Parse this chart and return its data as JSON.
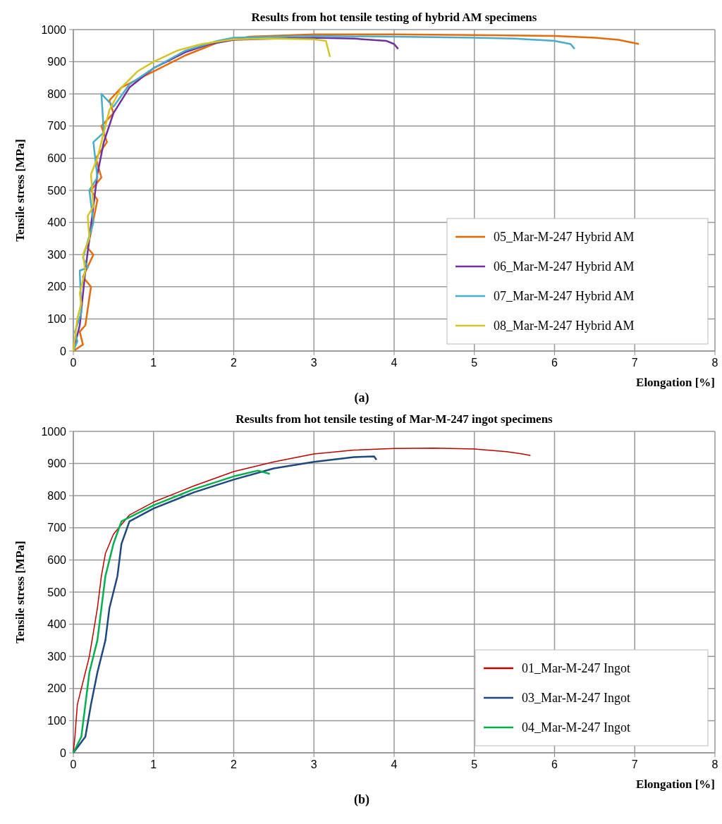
{
  "chart_data": [
    {
      "type": "line",
      "title": "Results from hot tensile testing of hybrid AM specimens",
      "xlabel": "Elongation [%]",
      "ylabel": "Tensile stress [MPa]",
      "annotations": [
        "(a)"
      ],
      "xlim": [
        0,
        8
      ],
      "xticks": [
        0,
        1,
        2,
        3,
        4,
        5,
        6,
        7,
        8
      ],
      "ylim": [
        0,
        1000
      ],
      "yticks": [
        0,
        100,
        200,
        300,
        400,
        500,
        600,
        700,
        800,
        900,
        1000
      ],
      "grid": true,
      "legend": "bottom right",
      "marker": "none",
      "line_style": "solid",
      "series": [
        {
          "name": "05_Mar-M-247 Hybrid AM",
          "color": "#e46c0a",
          "x": [
            0,
            0.12,
            0.08,
            0.15,
            0.22,
            0.12,
            0.25,
            0.18,
            0.3,
            0.22,
            0.35,
            0.28,
            0.42,
            0.35,
            0.5,
            0.45,
            0.6,
            0.8,
            1.0,
            1.4,
            1.8,
            2.2,
            3,
            4,
            5,
            6,
            6.5,
            6.8,
            7.0,
            7.05
          ],
          "values": [
            0,
            20,
            60,
            80,
            200,
            230,
            300,
            320,
            470,
            500,
            540,
            600,
            650,
            700,
            740,
            780,
            820,
            845,
            870,
            920,
            960,
            978,
            985,
            985,
            983,
            980,
            975,
            968,
            958,
            955
          ]
        },
        {
          "name": "06_Mar-M-247 Hybrid AM",
          "color": "#7030a0",
          "x": [
            0,
            0.08,
            0.15,
            0.2,
            0.25,
            0.3,
            0.38,
            0.5,
            0.7,
            1.0,
            1.4,
            1.7,
            2,
            2.5,
            3,
            3.5,
            3.9,
            4.0,
            4.05
          ],
          "values": [
            0,
            80,
            250,
            350,
            450,
            550,
            650,
            740,
            820,
            880,
            930,
            955,
            968,
            972,
            975,
            972,
            965,
            955,
            940
          ]
        },
        {
          "name": "07_Mar-M-247 Hybrid AM",
          "color": "#4bacc6",
          "x": [
            0,
            0.05,
            0.02,
            0.1,
            0.08,
            0.18,
            0.12,
            0.25,
            0.2,
            0.3,
            0.25,
            0.38,
            0.35,
            0.5,
            0.7,
            1.0,
            1.4,
            1.8,
            2,
            3,
            4,
            5,
            5.5,
            6,
            6.2,
            6.25
          ],
          "values": [
            0,
            30,
            60,
            120,
            250,
            260,
            290,
            400,
            500,
            540,
            650,
            680,
            800,
            760,
            830,
            880,
            935,
            965,
            975,
            980,
            978,
            975,
            972,
            965,
            955,
            940
          ]
        },
        {
          "name": "08_Mar-M-247 Hybrid AM",
          "color": "#d4c424",
          "x": [
            0,
            0.05,
            0.1,
            0.08,
            0.15,
            0.12,
            0.2,
            0.18,
            0.25,
            0.22,
            0.3,
            0.35,
            0.45,
            0.6,
            0.8,
            1.0,
            1.3,
            1.6,
            2,
            2.5,
            3,
            3.15,
            3.2
          ],
          "values": [
            0,
            100,
            150,
            180,
            250,
            300,
            350,
            420,
            450,
            550,
            600,
            650,
            750,
            820,
            870,
            900,
            935,
            955,
            970,
            972,
            970,
            965,
            915
          ]
        }
      ]
    },
    {
      "type": "line",
      "title": "Results from hot tensile testing of Mar-M-247 ingot specimens",
      "xlabel": "Elongation [%]",
      "ylabel": "Tensile stress [MPa]",
      "annotations": [
        "(b)"
      ],
      "xlim": [
        0,
        8
      ],
      "xticks": [
        0,
        1,
        2,
        3,
        4,
        5,
        6,
        7,
        8
      ],
      "ylim": [
        0,
        1000
      ],
      "yticks": [
        0,
        100,
        200,
        300,
        400,
        500,
        600,
        700,
        800,
        900,
        1000
      ],
      "grid": true,
      "legend": "bottom right",
      "marker": "none",
      "line_style": "solid",
      "series": [
        {
          "name": "01_Mar-M-247 Ingot",
          "color": "#c00000",
          "x": [
            0,
            0.02,
            0.05,
            0.1,
            0.2,
            0.3,
            0.35,
            0.4,
            0.5,
            0.7,
            1.0,
            1.5,
            2,
            2.5,
            3,
            3.5,
            4,
            4.5,
            5,
            5.4,
            5.6,
            5.7
          ],
          "values": [
            0,
            50,
            150,
            200,
            300,
            450,
            550,
            620,
            680,
            740,
            780,
            830,
            875,
            905,
            930,
            942,
            947,
            948,
            945,
            937,
            930,
            925
          ]
        },
        {
          "name": "03_Mar-M-247 Ingot",
          "color": "#1f497d",
          "x": [
            0,
            0.15,
            0.22,
            0.3,
            0.4,
            0.45,
            0.55,
            0.6,
            0.7,
            1.0,
            1.5,
            2,
            2.5,
            3,
            3.5,
            3.75,
            3.78
          ],
          "values": [
            0,
            50,
            150,
            250,
            350,
            450,
            550,
            650,
            720,
            760,
            810,
            850,
            885,
            905,
            920,
            922,
            912
          ]
        },
        {
          "name": "04_Mar-M-247 Ingot",
          "color": "#00b050",
          "x": [
            0,
            0.1,
            0.15,
            0.2,
            0.3,
            0.35,
            0.4,
            0.5,
            0.6,
            1.0,
            1.5,
            2,
            2.3,
            2.45
          ],
          "values": [
            0,
            50,
            150,
            250,
            350,
            450,
            550,
            650,
            720,
            770,
            820,
            860,
            878,
            868
          ]
        }
      ]
    }
  ]
}
